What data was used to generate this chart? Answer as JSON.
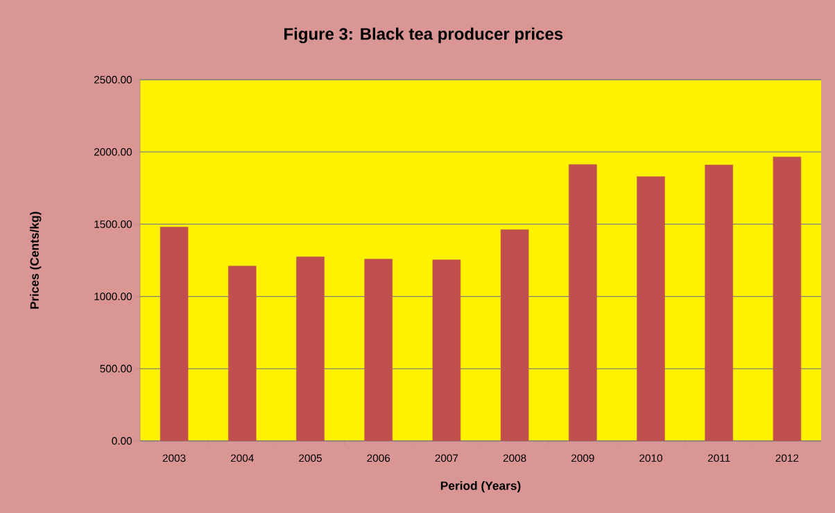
{
  "chart_data": {
    "type": "bar",
    "title": "Figure 3: Black tea producer prices",
    "xlabel": "Period (Years)",
    "ylabel": "Prices (Cents/kg)",
    "categories": [
      "2003",
      "2004",
      "2005",
      "2006",
      "2007",
      "2008",
      "2009",
      "2010",
      "2011",
      "2012"
    ],
    "values": [
      1480,
      1210,
      1274,
      1258,
      1253,
      1462,
      1913,
      1829,
      1910,
      1966
    ],
    "color": "#c0504d",
    "ylim": [
      0,
      2500
    ],
    "yticks": [
      {
        "value": 0,
        "label": "0.00"
      },
      {
        "value": 500,
        "label": "500.00"
      },
      {
        "value": 1000,
        "label": "1000.00"
      },
      {
        "value": 1500,
        "label": "1500.00"
      },
      {
        "value": 2000,
        "label": "2000.00"
      },
      {
        "value": 2500,
        "label": "2500.00"
      }
    ],
    "grid": "y"
  }
}
